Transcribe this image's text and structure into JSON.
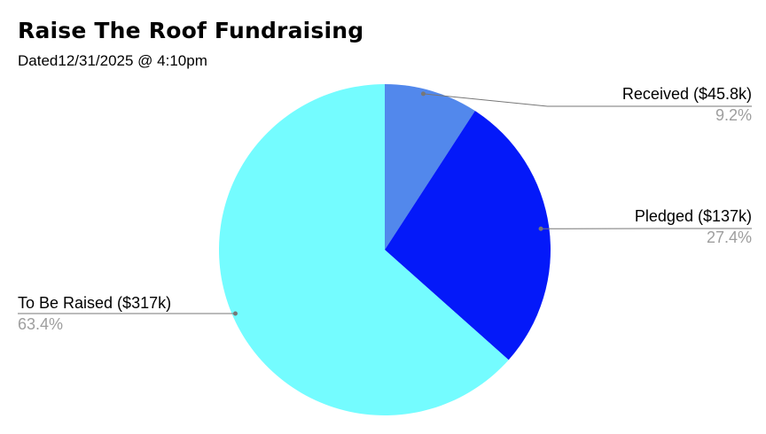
{
  "chart_data": {
    "type": "pie",
    "title": "Raise The Roof Fundraising",
    "subtitle": "Dated12/31/2025 @ 4:10pm",
    "slices": [
      {
        "label": "Received ($45.8k)",
        "value": 45.8,
        "percent_label": "9.2%",
        "color": "#5288ec"
      },
      {
        "label": "Pledged ($137k)",
        "value": 137,
        "percent_label": "27.4%",
        "color": "#0419f9"
      },
      {
        "label": "To Be Raised ($317k)",
        "value": 317,
        "percent_label": "63.4%",
        "color": "#74fcff"
      }
    ],
    "start_angle_deg": 0,
    "direction": "clockwise",
    "legend": "none (leader-line labels)"
  },
  "colors": {
    "leader_line": "#777777",
    "percent_text": "#9e9e9e"
  }
}
